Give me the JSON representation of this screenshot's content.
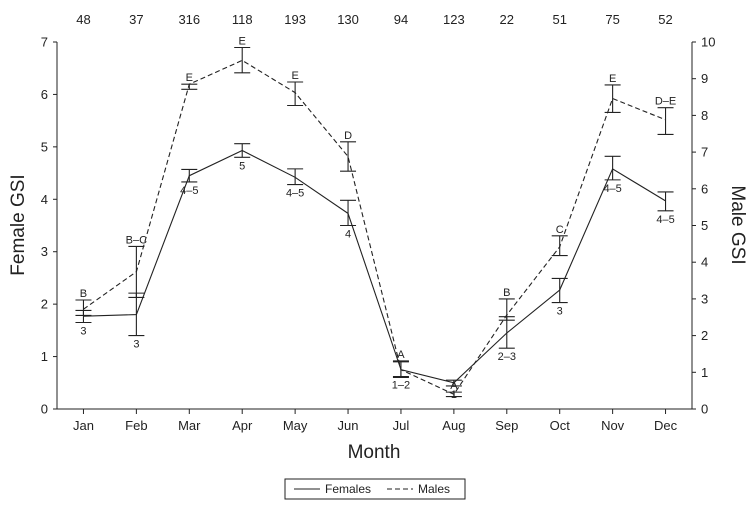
{
  "chart_data": {
    "type": "line",
    "xlabel": "Month",
    "ylabel_left": "Female GSI",
    "ylabel_right": "Male GSI",
    "categories": [
      "Jan",
      "Feb",
      "Mar",
      "Apr",
      "May",
      "Jun",
      "Jul",
      "Aug",
      "Sep",
      "Oct",
      "Nov",
      "Dec"
    ],
    "top_counts": [
      "48",
      "37",
      "316",
      "118",
      "193",
      "130",
      "94",
      "123",
      "22",
      "51",
      "75",
      "52"
    ],
    "ylim_left": [
      0,
      7
    ],
    "yticks_left": [
      "0",
      "1",
      "2",
      "3",
      "4",
      "5",
      "6",
      "7"
    ],
    "ylim_right": [
      0,
      10
    ],
    "yticks_right": [
      "0",
      "1",
      "2",
      "3",
      "4",
      "5",
      "6",
      "7",
      "8",
      "9",
      "10"
    ],
    "series": [
      {
        "name": "Females",
        "axis": "left",
        "style": "solid",
        "values": [
          1.77,
          1.8,
          4.45,
          4.93,
          4.42,
          3.73,
          0.75,
          0.5,
          1.45,
          2.27,
          4.58,
          3.97
        ],
        "err_low": [
          1.65,
          1.4,
          4.33,
          4.8,
          4.28,
          3.5,
          0.62,
          0.44,
          1.16,
          2.03,
          4.37,
          3.78
        ],
        "err_high": [
          1.88,
          2.21,
          4.57,
          5.06,
          4.58,
          3.98,
          0.9,
          0.55,
          1.76,
          2.49,
          4.82,
          4.14
        ],
        "labels": [
          "3",
          "3",
          "4–5",
          "5",
          "4–5",
          "4",
          "1–2",
          "1",
          "2–3",
          "3",
          "4–5",
          "4–5"
        ]
      },
      {
        "name": "Males",
        "axis": "right",
        "style": "dashed",
        "values": [
          2.72,
          3.74,
          8.85,
          9.5,
          8.62,
          6.88,
          1.07,
          0.4,
          2.56,
          4.42,
          8.46,
          7.88
        ],
        "err_low": [
          2.55,
          3.04,
          8.71,
          9.16,
          8.27,
          6.48,
          0.86,
          0.34,
          2.42,
          4.18,
          8.08,
          7.48
        ],
        "err_high": [
          2.97,
          4.43,
          8.85,
          9.85,
          8.91,
          7.28,
          1.31,
          0.46,
          3.0,
          4.72,
          8.83,
          8.21
        ],
        "labels": [
          "B",
          "B–C",
          "E",
          "E",
          "E",
          "D",
          "A",
          "A",
          "B",
          "C",
          "E",
          "D–E"
        ]
      }
    ],
    "legend": {
      "placement": "bottom-center",
      "entries": [
        "Females",
        "Males"
      ]
    },
    "grid": false
  }
}
